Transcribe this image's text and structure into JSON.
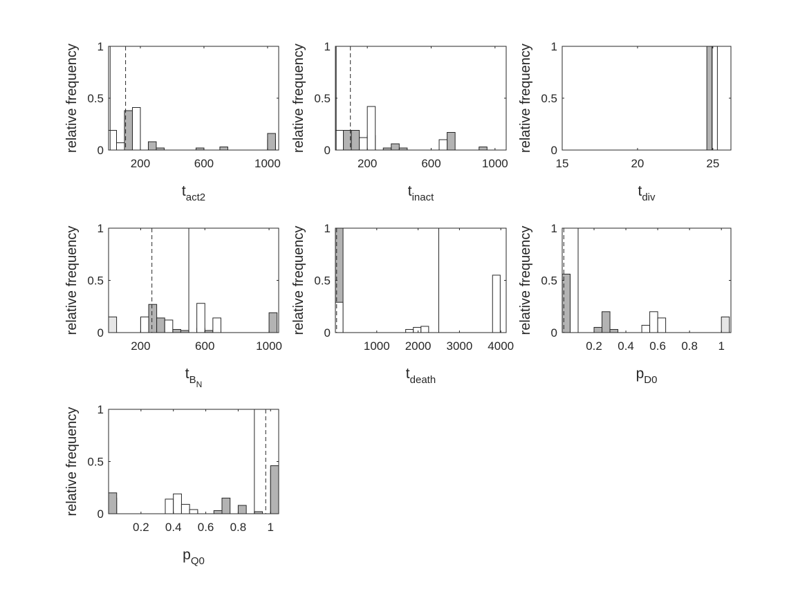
{
  "figure": {
    "ylabel": "relative frequency"
  },
  "chart_data": [
    {
      "type": "bar",
      "xlabel": {
        "base": "t",
        "sub": "act2"
      },
      "ylabel": "relative frequency",
      "xlim": [
        0,
        1070
      ],
      "ylim": [
        0,
        1
      ],
      "xticks": [
        200,
        600,
        1000
      ],
      "yticks": [
        0,
        0.5,
        1
      ],
      "bin_width": 50,
      "series": [
        {
          "name": "",
          "style": "light",
          "bins": [
            [
              0,
              50,
              0.1
            ],
            [
              100,
              150,
              0.22
            ],
            [
              150,
              200,
              0.24
            ],
            [
              1000,
              1050,
              0.1
            ]
          ]
        },
        {
          "name": "",
          "style": "dark",
          "bins": [
            [
              100,
              150,
              0.38
            ],
            [
              250,
              300,
              0.08
            ],
            [
              300,
              350,
              0.02
            ],
            [
              550,
              600,
              0.02
            ],
            [
              700,
              750,
              0.03
            ],
            [
              1000,
              1050,
              0.16
            ]
          ]
        },
        {
          "name": "",
          "style": "white",
          "bins": [
            [
              0,
              50,
              0.19
            ],
            [
              50,
              100,
              0.07
            ],
            [
              150,
              200,
              0.41
            ]
          ]
        }
      ],
      "lines": [
        {
          "style": "solid",
          "x": 10
        },
        {
          "style": "dashed",
          "x": 107
        }
      ]
    },
    {
      "type": "bar",
      "xlabel": {
        "base": "t",
        "sub": "inact"
      },
      "ylabel": "relative frequency",
      "xlim": [
        0,
        1070
      ],
      "ylim": [
        0,
        1
      ],
      "xticks": [
        200,
        600,
        1000
      ],
      "yticks": [
        0,
        0.5,
        1
      ],
      "bin_width": 50,
      "series": [
        {
          "name": "",
          "style": "light",
          "bins": [
            [
              0,
              50,
              0.09
            ],
            [
              50,
              100,
              0.12
            ],
            [
              200,
              250,
              0.14
            ]
          ]
        },
        {
          "name": "",
          "style": "dark",
          "bins": [
            [
              50,
              100,
              0.19
            ],
            [
              100,
              150,
              0.19
            ],
            [
              300,
              350,
              0.02
            ],
            [
              350,
              400,
              0.06
            ],
            [
              400,
              450,
              0.02
            ],
            [
              700,
              750,
              0.17
            ],
            [
              900,
              950,
              0.03
            ]
          ]
        },
        {
          "name": "",
          "style": "white",
          "bins": [
            [
              0,
              50,
              0.19
            ],
            [
              150,
              200,
              0.12
            ],
            [
              200,
              250,
              0.42
            ],
            [
              650,
              700,
              0.1
            ]
          ]
        }
      ],
      "lines": [
        {
          "style": "solid",
          "x": 5
        },
        {
          "style": "dashed",
          "x": 94
        }
      ]
    },
    {
      "type": "bar",
      "xlabel": {
        "base": "t",
        "sub": "div"
      },
      "ylabel": "relative frequency",
      "xlim": [
        15,
        26.2
      ],
      "ylim": [
        0,
        1
      ],
      "xticks": [
        15,
        20,
        25
      ],
      "yticks": [
        0,
        0.5,
        1
      ],
      "bin_width": 0.45,
      "series": [
        {
          "name": "",
          "style": "dark",
          "bins": [
            [
              24.6,
              24.95,
              1
            ]
          ]
        },
        {
          "name": "",
          "style": "white",
          "bins": [
            [
              24.95,
              25.3,
              1
            ]
          ]
        }
      ],
      "lines": [
        {
          "style": "solid",
          "x": 24.95
        }
      ]
    },
    {
      "type": "bar",
      "xlabel": {
        "base": "t",
        "sub": "B",
        "subsub": "N"
      },
      "ylabel": "relative frequency",
      "xlim": [
        0,
        1060
      ],
      "ylim": [
        0,
        1
      ],
      "xticks": [
        200,
        600,
        1000
      ],
      "yticks": [
        0,
        0.5,
        1
      ],
      "bin_width": 50,
      "series": [
        {
          "name": "",
          "style": "light",
          "bins": [
            [
              0,
              50,
              0.15
            ],
            [
              200,
              250,
              0.14
            ],
            [
              250,
              300,
              0.15
            ],
            [
              300,
              350,
              0.07
            ],
            [
              550,
              600,
              0.04
            ]
          ]
        },
        {
          "name": "",
          "style": "dark",
          "bins": [
            [
              250,
              300,
              0.27
            ],
            [
              300,
              350,
              0.14
            ],
            [
              400,
              450,
              0.03
            ],
            [
              450,
              500,
              0.02
            ],
            [
              600,
              650,
              0.02
            ],
            [
              1000,
              1050,
              0.19
            ]
          ]
        },
        {
          "name": "",
          "style": "white",
          "bins": [
            [
              200,
              250,
              0.15
            ],
            [
              350,
              400,
              0.12
            ],
            [
              550,
              600,
              0.28
            ],
            [
              650,
              700,
              0.14
            ]
          ]
        }
      ],
      "lines": [
        {
          "style": "solid",
          "x": 500
        },
        {
          "style": "dashed",
          "x": 270
        }
      ]
    },
    {
      "type": "bar",
      "xlabel": {
        "base": "t",
        "sub": "death"
      },
      "ylabel": "relative frequency",
      "xlim": [
        0,
        4130
      ],
      "ylim": [
        0,
        1
      ],
      "xticks": [
        1000,
        2000,
        3000,
        4000
      ],
      "yticks": [
        0,
        0.5,
        1
      ],
      "bin_width": 185,
      "series": [
        {
          "name": "",
          "style": "dark",
          "bins": [
            [
              0,
              185,
              1
            ]
          ]
        },
        {
          "name": "",
          "style": "white",
          "bins": [
            [
              0,
              185,
              0.29
            ],
            [
              1700,
              1885,
              0.03
            ],
            [
              1885,
              2070,
              0.05
            ],
            [
              2070,
              2255,
              0.06
            ],
            [
              3800,
              3985,
              0.55
            ]
          ]
        }
      ],
      "lines": [
        {
          "style": "solid",
          "x": 2500
        },
        {
          "style": "dashed",
          "x": 30
        }
      ]
    },
    {
      "type": "bar",
      "xlabel": {
        "base": "p",
        "sub": "D0"
      },
      "ylabel": "relative frequency",
      "xlim": [
        0,
        1.06
      ],
      "ylim": [
        0,
        1
      ],
      "xticks": [
        0.2,
        0.4,
        0.6,
        0.8,
        1
      ],
      "yticks": [
        0,
        0.5,
        1
      ],
      "xtick_labels": [
        "0.2",
        "0.4",
        "0.6",
        "0.8",
        "1"
      ],
      "bin_width": 0.05,
      "series": [
        {
          "name": "",
          "style": "light",
          "bins": [
            [
              0,
              0.05,
              0.41
            ]
          ]
        },
        {
          "name": "",
          "style": "dark",
          "bins": [
            [
              0,
              0.05,
              0.56
            ],
            [
              0.2,
              0.25,
              0.05
            ],
            [
              0.25,
              0.3,
              0.2
            ],
            [
              0.3,
              0.35,
              0.03
            ]
          ]
        },
        {
          "name": "",
          "style": "white",
          "bins": [
            [
              0.5,
              0.55,
              0.07
            ],
            [
              0.55,
              0.6,
              0.2
            ],
            [
              0.6,
              0.65,
              0.14
            ]
          ]
        },
        {
          "name": "",
          "style": "light",
          "bins": [
            [
              1,
              1.05,
              0.15
            ]
          ]
        }
      ],
      "lines": [
        {
          "style": "solid",
          "x": 0.1
        },
        {
          "style": "dashed",
          "x": 0.01
        }
      ]
    },
    {
      "type": "bar",
      "xlabel": {
        "base": "p",
        "sub": "Q0"
      },
      "ylabel": "relative frequency",
      "xlim": [
        0,
        1.05
      ],
      "ylim": [
        0,
        1
      ],
      "xticks": [
        0.2,
        0.4,
        0.6,
        0.8,
        1
      ],
      "yticks": [
        0,
        0.5,
        1
      ],
      "xtick_labels": [
        "0.2",
        "0.4",
        "0.6",
        "0.8",
        "1"
      ],
      "bin_width": 0.05,
      "series": [
        {
          "name": "",
          "style": "light",
          "bins": [
            [
              0,
              0.05,
              0.15
            ],
            [
              1,
              1.05,
              0.42
            ]
          ]
        },
        {
          "name": "",
          "style": "dark",
          "bins": [
            [
              0,
              0.05,
              0.2
            ],
            [
              0.5,
              0.55,
              0.02
            ],
            [
              0.65,
              0.7,
              0.03
            ],
            [
              0.7,
              0.75,
              0.15
            ],
            [
              0.8,
              0.85,
              0.08
            ],
            [
              0.9,
              0.95,
              0.02
            ],
            [
              1,
              1.05,
              0.46
            ]
          ]
        },
        {
          "name": "",
          "style": "white",
          "bins": [
            [
              0.35,
              0.4,
              0.14
            ],
            [
              0.4,
              0.45,
              0.19
            ],
            [
              0.45,
              0.5,
              0.09
            ],
            [
              0.5,
              0.55,
              0.04
            ]
          ]
        }
      ],
      "lines": [
        {
          "style": "solid",
          "x": 0.9
        },
        {
          "style": "dashed",
          "x": 0.97
        }
      ]
    }
  ]
}
